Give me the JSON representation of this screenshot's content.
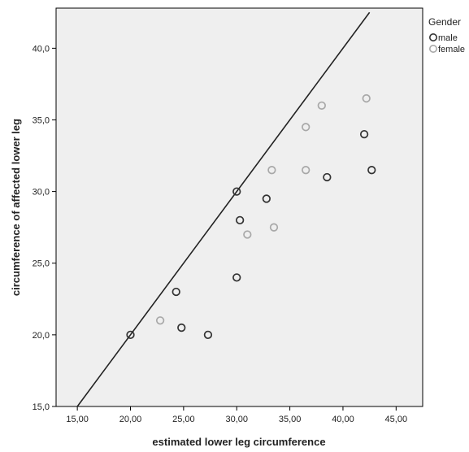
{
  "chart_data": {
    "type": "scatter",
    "xlabel": "estimated lower leg circumference",
    "ylabel": "circumference of affected lower leg",
    "xlim": [
      13.0,
      47.5
    ],
    "ylim": [
      15.0,
      42.8
    ],
    "x_ticks": [
      "15,00",
      "20,00",
      "25,00",
      "30,00",
      "35,00",
      "40,00",
      "45,00"
    ],
    "x_tick_values": [
      15,
      20,
      25,
      30,
      35,
      40,
      45
    ],
    "y_ticks": [
      "15,0",
      "20,0",
      "25,0",
      "30,0",
      "35,0",
      "40,0"
    ],
    "y_tick_values": [
      15,
      20,
      25,
      30,
      35,
      40
    ],
    "grid": false,
    "plot_background": "#efefef",
    "reference_line": {
      "x": [
        15.0,
        42.5
      ],
      "y": [
        15.0,
        42.5
      ],
      "color": "#222222"
    },
    "legend": {
      "title": "Gender",
      "placement": "right"
    },
    "series": [
      {
        "name": "male",
        "color": "#333333",
        "x": [
          20.0,
          24.3,
          24.8,
          27.3,
          30.0,
          30.0,
          30.3,
          32.8,
          38.5,
          42.0,
          42.7
        ],
        "y": [
          20.0,
          23.0,
          20.5,
          20.0,
          30.0,
          24.0,
          28.0,
          29.5,
          31.0,
          34.0,
          31.5
        ]
      },
      {
        "name": "female",
        "color": "#a8a8a8",
        "x": [
          22.8,
          31.0,
          33.3,
          33.5,
          36.5,
          36.5,
          38.0,
          42.2
        ],
        "y": [
          21.0,
          27.0,
          31.5,
          27.5,
          34.5,
          31.5,
          36.0,
          36.5
        ]
      }
    ]
  }
}
